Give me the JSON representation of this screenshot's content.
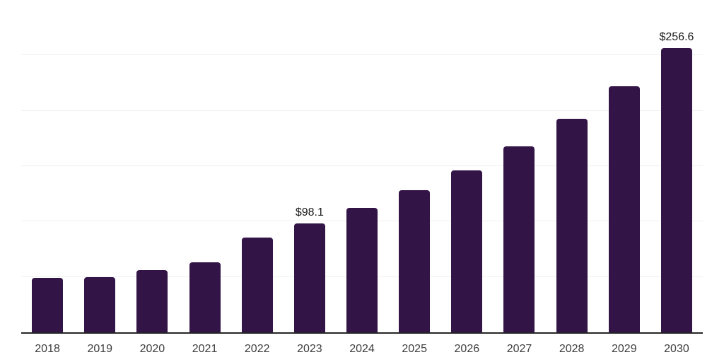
{
  "chart_data": {
    "type": "bar",
    "categories": [
      "2018",
      "2019",
      "2020",
      "2021",
      "2022",
      "2023",
      "2024",
      "2025",
      "2026",
      "2027",
      "2028",
      "2029",
      "2030"
    ],
    "values": [
      49,
      50,
      56,
      63,
      85.5,
      98.1,
      112.6,
      128,
      146,
      168,
      193,
      222,
      256.6
    ],
    "value_labels": [
      "",
      "",
      "",
      "",
      "",
      "$98.1",
      "",
      "",
      "",
      "",
      "",
      "",
      "$256.6"
    ],
    "xlabel": "",
    "ylabel": "",
    "ylim": [
      0,
      300
    ],
    "gridline_step": 50,
    "grid": "horizontal-only",
    "y_tick_labels_visible": false,
    "legend": "none",
    "currency_prefix": "$"
  },
  "colors": {
    "bar": "#331447",
    "axis": "#262626",
    "grid": "#f0f0f0",
    "grid_top": "#e3e3e3",
    "tick_label": "#3d3d3d",
    "value_label": "#1a1a1a",
    "background": "#ffffff"
  }
}
